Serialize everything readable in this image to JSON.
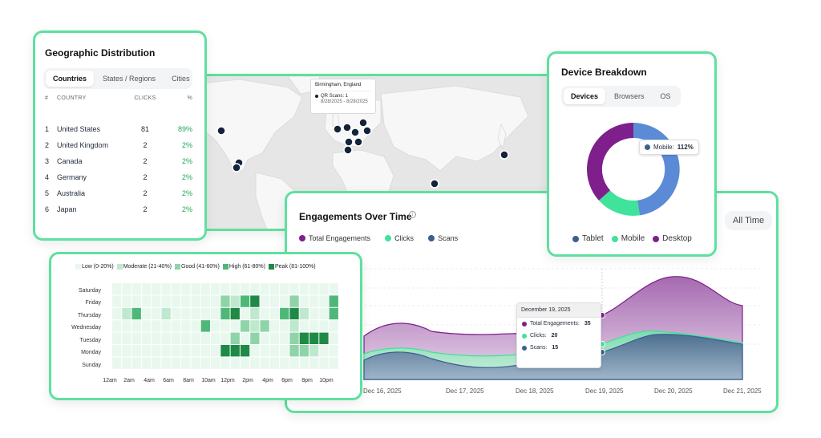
{
  "map": {
    "tooltip": {
      "location": "Birmingham, England",
      "metric": "QR Scans: 1",
      "date_range": "8/28/2025 - 8/28/2025"
    },
    "marker_color": "#13243a"
  },
  "geo": {
    "title": "Geographic Distribution",
    "tabs": [
      "Countries",
      "States / Regions",
      "Cities"
    ],
    "active_tab": "Countries",
    "columns": [
      "#",
      "COUNTRY",
      "CLICKS",
      "%"
    ],
    "rows": [
      {
        "rank": "1",
        "country": "United States",
        "clicks": "81",
        "pct": "89%"
      },
      {
        "rank": "2",
        "country": "United Kingdom",
        "clicks": "2",
        "pct": "2%"
      },
      {
        "rank": "3",
        "country": "Canada",
        "clicks": "2",
        "pct": "2%"
      },
      {
        "rank": "4",
        "country": "Germany",
        "clicks": "2",
        "pct": "2%"
      },
      {
        "rank": "5",
        "country": "Australia",
        "clicks": "2",
        "pct": "2%"
      },
      {
        "rank": "6",
        "country": "Japan",
        "clicks": "2",
        "pct": "2%"
      }
    ]
  },
  "device": {
    "title": "Device Breakdown",
    "tabs": [
      "Devices",
      "Browsers",
      "OS"
    ],
    "active_tab": "Devices",
    "tooltip": {
      "label": "Mobile:",
      "value": "112%"
    },
    "legend": [
      {
        "label": "Tablet",
        "color": "#3b5f91"
      },
      {
        "label": "Mobile",
        "color": "#3fe39a"
      },
      {
        "label": "Desktop",
        "color": "#7e1f8c"
      }
    ],
    "donut_colors": {
      "blue": "#5b8bd6",
      "green": "#3fe39a",
      "purple": "#7e1f8c"
    }
  },
  "engagements": {
    "title": "Engagements Over Time",
    "info_icon": "info-icon",
    "range_button": "All Time",
    "legend": [
      {
        "label": "Total Engagements",
        "color": "#7e1f8c"
      },
      {
        "label": "Clicks",
        "color": "#3fe39a"
      },
      {
        "label": "Scans",
        "color": "#3b5f91"
      }
    ],
    "x_labels": [
      "Dec 16, 2025",
      "Dec 17, 2025",
      "Dec 18, 2025",
      "Dec 19, 2025",
      "Dec 20, 2025",
      "Dec 21, 2025"
    ],
    "tooltip": {
      "date": "December 19, 2025",
      "rows": [
        {
          "label": "Total Engagements:",
          "value": "35",
          "color": "#7e1f8c"
        },
        {
          "label": "Clicks:",
          "value": "20",
          "color": "#3fe39a"
        },
        {
          "label": "Scans:",
          "value": "15",
          "color": "#3b5f91"
        }
      ]
    }
  },
  "heatmap": {
    "legend": [
      {
        "label": "Low (0-20%)",
        "color": "#e8f8ee"
      },
      {
        "label": "Moderate (21-40%)",
        "color": "#bfe8cf"
      },
      {
        "label": "Good (41-60%)",
        "color": "#8fd4a8"
      },
      {
        "label": "High (61-80%)",
        "color": "#4fb878"
      },
      {
        "label": "Peak (81-100%)",
        "color": "#1e8a46"
      }
    ],
    "days": [
      "Saturday",
      "Friday",
      "Thursday",
      "Wednesday",
      "Tuesday",
      "Monday",
      "Sunday"
    ],
    "hours": [
      "12am",
      "2am",
      "4am",
      "6am",
      "8am",
      "10am",
      "12pm",
      "2pm",
      "4pm",
      "6pm",
      "8pm",
      "10pm"
    ]
  }
}
